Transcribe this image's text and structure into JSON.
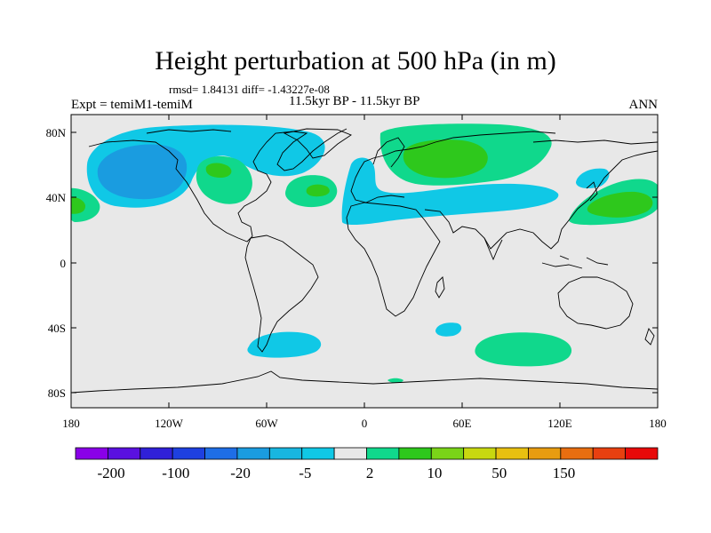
{
  "title": "Height perturbation at 500 hPa (in m)",
  "stats": "rmsd= 1.84131 diff= -1.43227e-08",
  "experiment": "Expt = temiM1-temiM",
  "period": "11.5kyr BP - 11.5kyr BP",
  "season": "ANN",
  "y_axis_labels": [
    "80N",
    "40N",
    "0",
    "40S",
    "80S"
  ],
  "x_axis_labels": [
    "180",
    "120W",
    "60W",
    "0",
    "60E",
    "120E",
    "180"
  ],
  "colorbar": {
    "labels": [
      "-200",
      "-100",
      "-20",
      "-5",
      "2",
      "10",
      "50",
      "150"
    ],
    "colors": [
      "#8a00e8",
      "#5a10e0",
      "#3020d8",
      "#1e40e0",
      "#1e6ee6",
      "#1a9ce0",
      "#18b6e0",
      "#10c8e6",
      "#e8e8e8",
      "#10d88c",
      "#2ec81c",
      "#7ad418",
      "#c8d810",
      "#e8c010",
      "#e89c10",
      "#e86e10",
      "#e84010",
      "#e80a0a"
    ]
  },
  "map": {
    "background_color": "#e8e8e8",
    "positive_light": "#10d88c",
    "positive_mid": "#2ec81c",
    "negative_light": "#10c8e6",
    "negative_mid": "#1a9ce0",
    "negative_dark": "#1e6ee6"
  }
}
